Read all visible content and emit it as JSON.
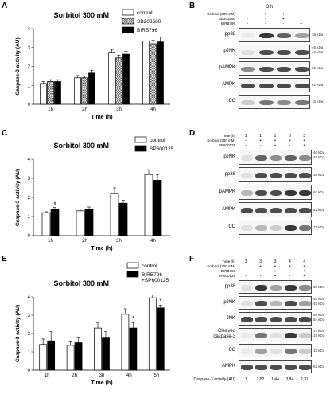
{
  "panels": {
    "A": {
      "letter": "A"
    },
    "B": {
      "letter": "B"
    },
    "C": {
      "letter": "C"
    },
    "D": {
      "letter": "D"
    },
    "E": {
      "letter": "E"
    },
    "F": {
      "letter": "F"
    }
  },
  "chart_data": [
    {
      "panel": "A",
      "type": "bar",
      "title": "Sorbitol 300 mM",
      "xlabel": "Time  (h)",
      "ylabel": "Caspase-3 activity (AU)",
      "ylim": [
        0,
        4
      ],
      "yticks": [
        "0",
        "1",
        "2",
        "3",
        "4"
      ],
      "categories": [
        "1h",
        "2h",
        "3h",
        "4h"
      ],
      "legend_position": "top-right",
      "series": [
        {
          "name": "control",
          "color": "#ffffff",
          "pattern": "none",
          "values": [
            1.1,
            1.4,
            2.75,
            3.35
          ],
          "errors": [
            0.1,
            0.12,
            0.15,
            0.2
          ]
        },
        {
          "name": "SB203580",
          "color": "#cccccc",
          "pattern": "check",
          "values": [
            1.2,
            1.4,
            2.45,
            3.2
          ],
          "errors": [
            0.1,
            0.1,
            0.15,
            0.2
          ]
        },
        {
          "name": "BIRB796",
          "color": "#000000",
          "pattern": "none",
          "values": [
            1.2,
            1.65,
            2.65,
            3.3
          ],
          "errors": [
            0.1,
            0.15,
            0.15,
            0.25
          ]
        }
      ],
      "annotations": []
    },
    {
      "panel": "C",
      "type": "bar",
      "title": "Sorbitol 300 mM",
      "xlabel": "Time  (h)",
      "ylabel": "Caspase-3 activity (AU)",
      "ylim": [
        0,
        4
      ],
      "yticks": [
        "0",
        "1",
        "2",
        "3",
        "4"
      ],
      "categories": [
        "1h",
        "2h",
        "3h",
        "4h"
      ],
      "legend_position": "top-right",
      "series": [
        {
          "name": "control",
          "color": "#ffffff",
          "pattern": "none",
          "values": [
            1.2,
            1.3,
            2.2,
            3.2
          ],
          "errors": [
            0.05,
            0.1,
            0.3,
            0.25
          ]
        },
        {
          "name": "SP600125",
          "color": "#000000",
          "pattern": "none",
          "values": [
            1.4,
            1.4,
            1.7,
            2.9
          ],
          "errors": [
            0.08,
            0.1,
            0.15,
            0.3
          ]
        }
      ],
      "annotations": [
        {
          "text": "x",
          "category": "1h",
          "series": 1
        }
      ]
    },
    {
      "panel": "E",
      "type": "bar",
      "title": "Sorbitol 300 mM",
      "xlabel": "Time  (h)",
      "ylabel": "Caspase-3 activity (AU)",
      "ylim": [
        0,
        4
      ],
      "yticks": [
        "0",
        "1",
        "2",
        "3",
        "4"
      ],
      "categories": [
        "1h",
        "2h",
        "3h",
        "4h",
        "5h"
      ],
      "legend_position": "top-right",
      "series": [
        {
          "name": "control",
          "color": "#ffffff",
          "pattern": "none",
          "values": [
            1.4,
            1.35,
            2.3,
            3.05,
            3.95
          ],
          "errors": [
            0.3,
            0.2,
            0.3,
            0.3,
            0.15
          ]
        },
        {
          "name": "BIRB796\n+SP600125",
          "color": "#000000",
          "pattern": "none",
          "values": [
            1.6,
            1.5,
            1.8,
            2.3,
            3.4
          ],
          "errors": [
            0.5,
            0.3,
            0.3,
            0.3,
            0.15
          ]
        }
      ],
      "annotations": [
        {
          "text": "*",
          "category": "4h",
          "series": 1
        },
        {
          "text": "*",
          "category": "5h",
          "series": 1
        }
      ]
    }
  ],
  "blots": {
    "B": {
      "header": "3 h",
      "treatments": [
        {
          "label": "Sorbitol (300 mM)",
          "signs": [
            "-",
            "+",
            "+",
            "+"
          ]
        },
        {
          "label": "SB203580",
          "signs": [
            "-",
            "-",
            "+",
            "-"
          ]
        },
        {
          "label": "BIRB796",
          "signs": [
            "-",
            "-",
            "-",
            "+"
          ]
        }
      ],
      "rows": [
        {
          "label": "pp38",
          "kda": [
            "38 kDa"
          ],
          "intensity": [
            0.05,
            0.9,
            0.7,
            0.4
          ]
        },
        {
          "label": "pJNK",
          "kda": [
            "46 kDa",
            "45 kDa"
          ],
          "intensity": [
            0.1,
            0.8,
            0.8,
            0.8
          ]
        },
        {
          "label": "pAMPK",
          "kda": [
            "62 kDa"
          ],
          "intensity": [
            0.5,
            0.8,
            0.8,
            0.8
          ]
        },
        {
          "label": "AMPK",
          "kda": [
            "62 kDa"
          ],
          "intensity": [
            0.8,
            0.8,
            0.8,
            0.8
          ]
        },
        {
          "label": "CC",
          "kda": [
            "15 kDa"
          ],
          "intensity": [
            0.2,
            0.6,
            0.5,
            0.6
          ]
        }
      ]
    },
    "D": {
      "time_label": "Time (h)",
      "time_values": [
        "1",
        "1",
        "1",
        "3",
        "3"
      ],
      "treatments": [
        {
          "label": "Sorbitol (300 mM)",
          "signs": [
            "-",
            "+",
            "+",
            "+",
            "+"
          ]
        },
        {
          "label": "SP600125",
          "signs": [
            "-",
            "-",
            "+",
            "-",
            "+"
          ]
        }
      ],
      "rows": [
        {
          "label": "pJNK",
          "kda": [
            "46 kDa",
            "45 kDa"
          ],
          "intensity": [
            0.1,
            0.7,
            0.5,
            0.7,
            0.5
          ]
        },
        {
          "label": "pp38",
          "kda": [
            "38 kDa"
          ],
          "intensity": [
            0.1,
            0.8,
            0.8,
            0.8,
            0.8
          ]
        },
        {
          "label": "pAMPK",
          "kda": [
            "62 kDa"
          ],
          "intensity": [
            0.3,
            0.8,
            0.8,
            0.9,
            0.9
          ]
        },
        {
          "label": "AMPK",
          "kda": [
            "62 kDa"
          ],
          "intensity": [
            0.8,
            0.8,
            0.8,
            0.8,
            0.8
          ]
        },
        {
          "label": "CC",
          "kda": [
            "15 kDa"
          ],
          "intensity": [
            0.1,
            0.3,
            0.2,
            0.9,
            0.6
          ]
        }
      ]
    },
    "F": {
      "time_label": "Time (h)",
      "time_values": [
        "3",
        "3",
        "3",
        "4",
        "4"
      ],
      "treatments": [
        {
          "label": "Sorbitol (300 mM)",
          "signs": [
            "",
            "+",
            "+",
            "+",
            "+"
          ]
        },
        {
          "label": "BIRB796",
          "signs": [
            "-",
            "-",
            "+",
            "-",
            "+"
          ]
        },
        {
          "label": "SP600125",
          "signs": [
            "-",
            "-",
            "+",
            "-",
            "+"
          ]
        }
      ],
      "rows": [
        {
          "label": "pp38",
          "kda": [
            "38 kDa"
          ],
          "intensity": [
            0.1,
            0.9,
            0.4,
            0.9,
            0.5
          ]
        },
        {
          "label": "pJNK",
          "kda": [
            "46 kDa",
            "45 kDa"
          ],
          "intensity": [
            0.1,
            0.8,
            0.3,
            0.8,
            0.4
          ]
        },
        {
          "label": "JNK",
          "kda": [
            "46 kDa",
            "54 kDa"
          ],
          "intensity": [
            0.8,
            0.8,
            0.8,
            0.8,
            0.8
          ]
        },
        {
          "label": "Cleaved\ncaspase-3",
          "kda": [
            "17 kDa",
            "19 kDa"
          ],
          "intensity": [
            0.05,
            0.6,
            0.1,
            0.9,
            0.2
          ]
        },
        {
          "label": "CC",
          "kda": [
            "15 kDa"
          ],
          "intensity": [
            0.05,
            0.4,
            0.1,
            0.6,
            0.2
          ]
        },
        {
          "label": "AMPK",
          "kda": [
            "62 kDa"
          ],
          "intensity": [
            0.8,
            0.8,
            0.8,
            0.8,
            0.8
          ]
        }
      ],
      "footer_label": "Caspase-3 activity (AU)",
      "footer_values": [
        "1",
        "2,82",
        "1,44",
        "3,84",
        "2,31"
      ]
    }
  }
}
